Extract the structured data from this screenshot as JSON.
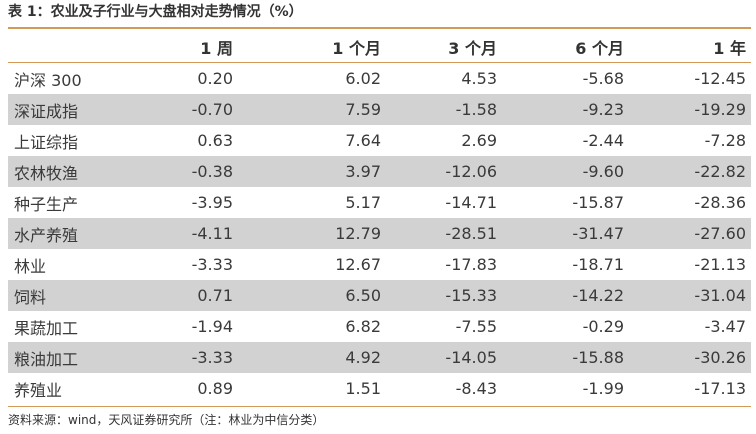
{
  "title": "表 1：农业及子行业与大盘相对走势情况（%）",
  "table": {
    "headers": [
      "",
      "1 周",
      "1 个月",
      "3 个月",
      "6 个月",
      "1 年"
    ],
    "rows": [
      {
        "name": "沪深 300",
        "values": [
          "0.20",
          "6.02",
          "4.53",
          "-5.68",
          "-12.45"
        ]
      },
      {
        "name": "深证成指",
        "values": [
          "-0.70",
          "7.59",
          "-1.58",
          "-9.23",
          "-19.29"
        ]
      },
      {
        "name": "上证综指",
        "values": [
          "0.63",
          "7.64",
          "2.69",
          "-2.44",
          "-7.28"
        ]
      },
      {
        "name": "农林牧渔",
        "values": [
          "-0.38",
          "3.97",
          "-12.06",
          "-9.60",
          "-22.82"
        ]
      },
      {
        "name": "种子生产",
        "values": [
          "-3.95",
          "5.17",
          "-14.71",
          "-15.87",
          "-28.36"
        ]
      },
      {
        "name": "水产养殖",
        "values": [
          "-4.11",
          "12.79",
          "-28.51",
          "-31.47",
          "-27.60"
        ]
      },
      {
        "name": "林业",
        "values": [
          "-3.33",
          "12.67",
          "-17.83",
          "-18.71",
          "-21.13"
        ]
      },
      {
        "name": "饲料",
        "values": [
          "0.71",
          "6.50",
          "-15.33",
          "-14.22",
          "-31.04"
        ]
      },
      {
        "name": "果蔬加工",
        "values": [
          "-1.94",
          "6.82",
          "-7.55",
          "-0.29",
          "-3.47"
        ]
      },
      {
        "name": "粮油加工",
        "values": [
          "-3.33",
          "4.92",
          "-14.05",
          "-15.88",
          "-30.26"
        ]
      },
      {
        "name": "养殖业",
        "values": [
          "0.89",
          "1.51",
          "-8.43",
          "-1.99",
          "-17.13"
        ]
      }
    ]
  },
  "source": "资料来源：wind，天风证券研究所（注：林业为中信分类）",
  "colors": {
    "accent_rule": "#d39a55",
    "stripe": "#d2d2d2"
  }
}
